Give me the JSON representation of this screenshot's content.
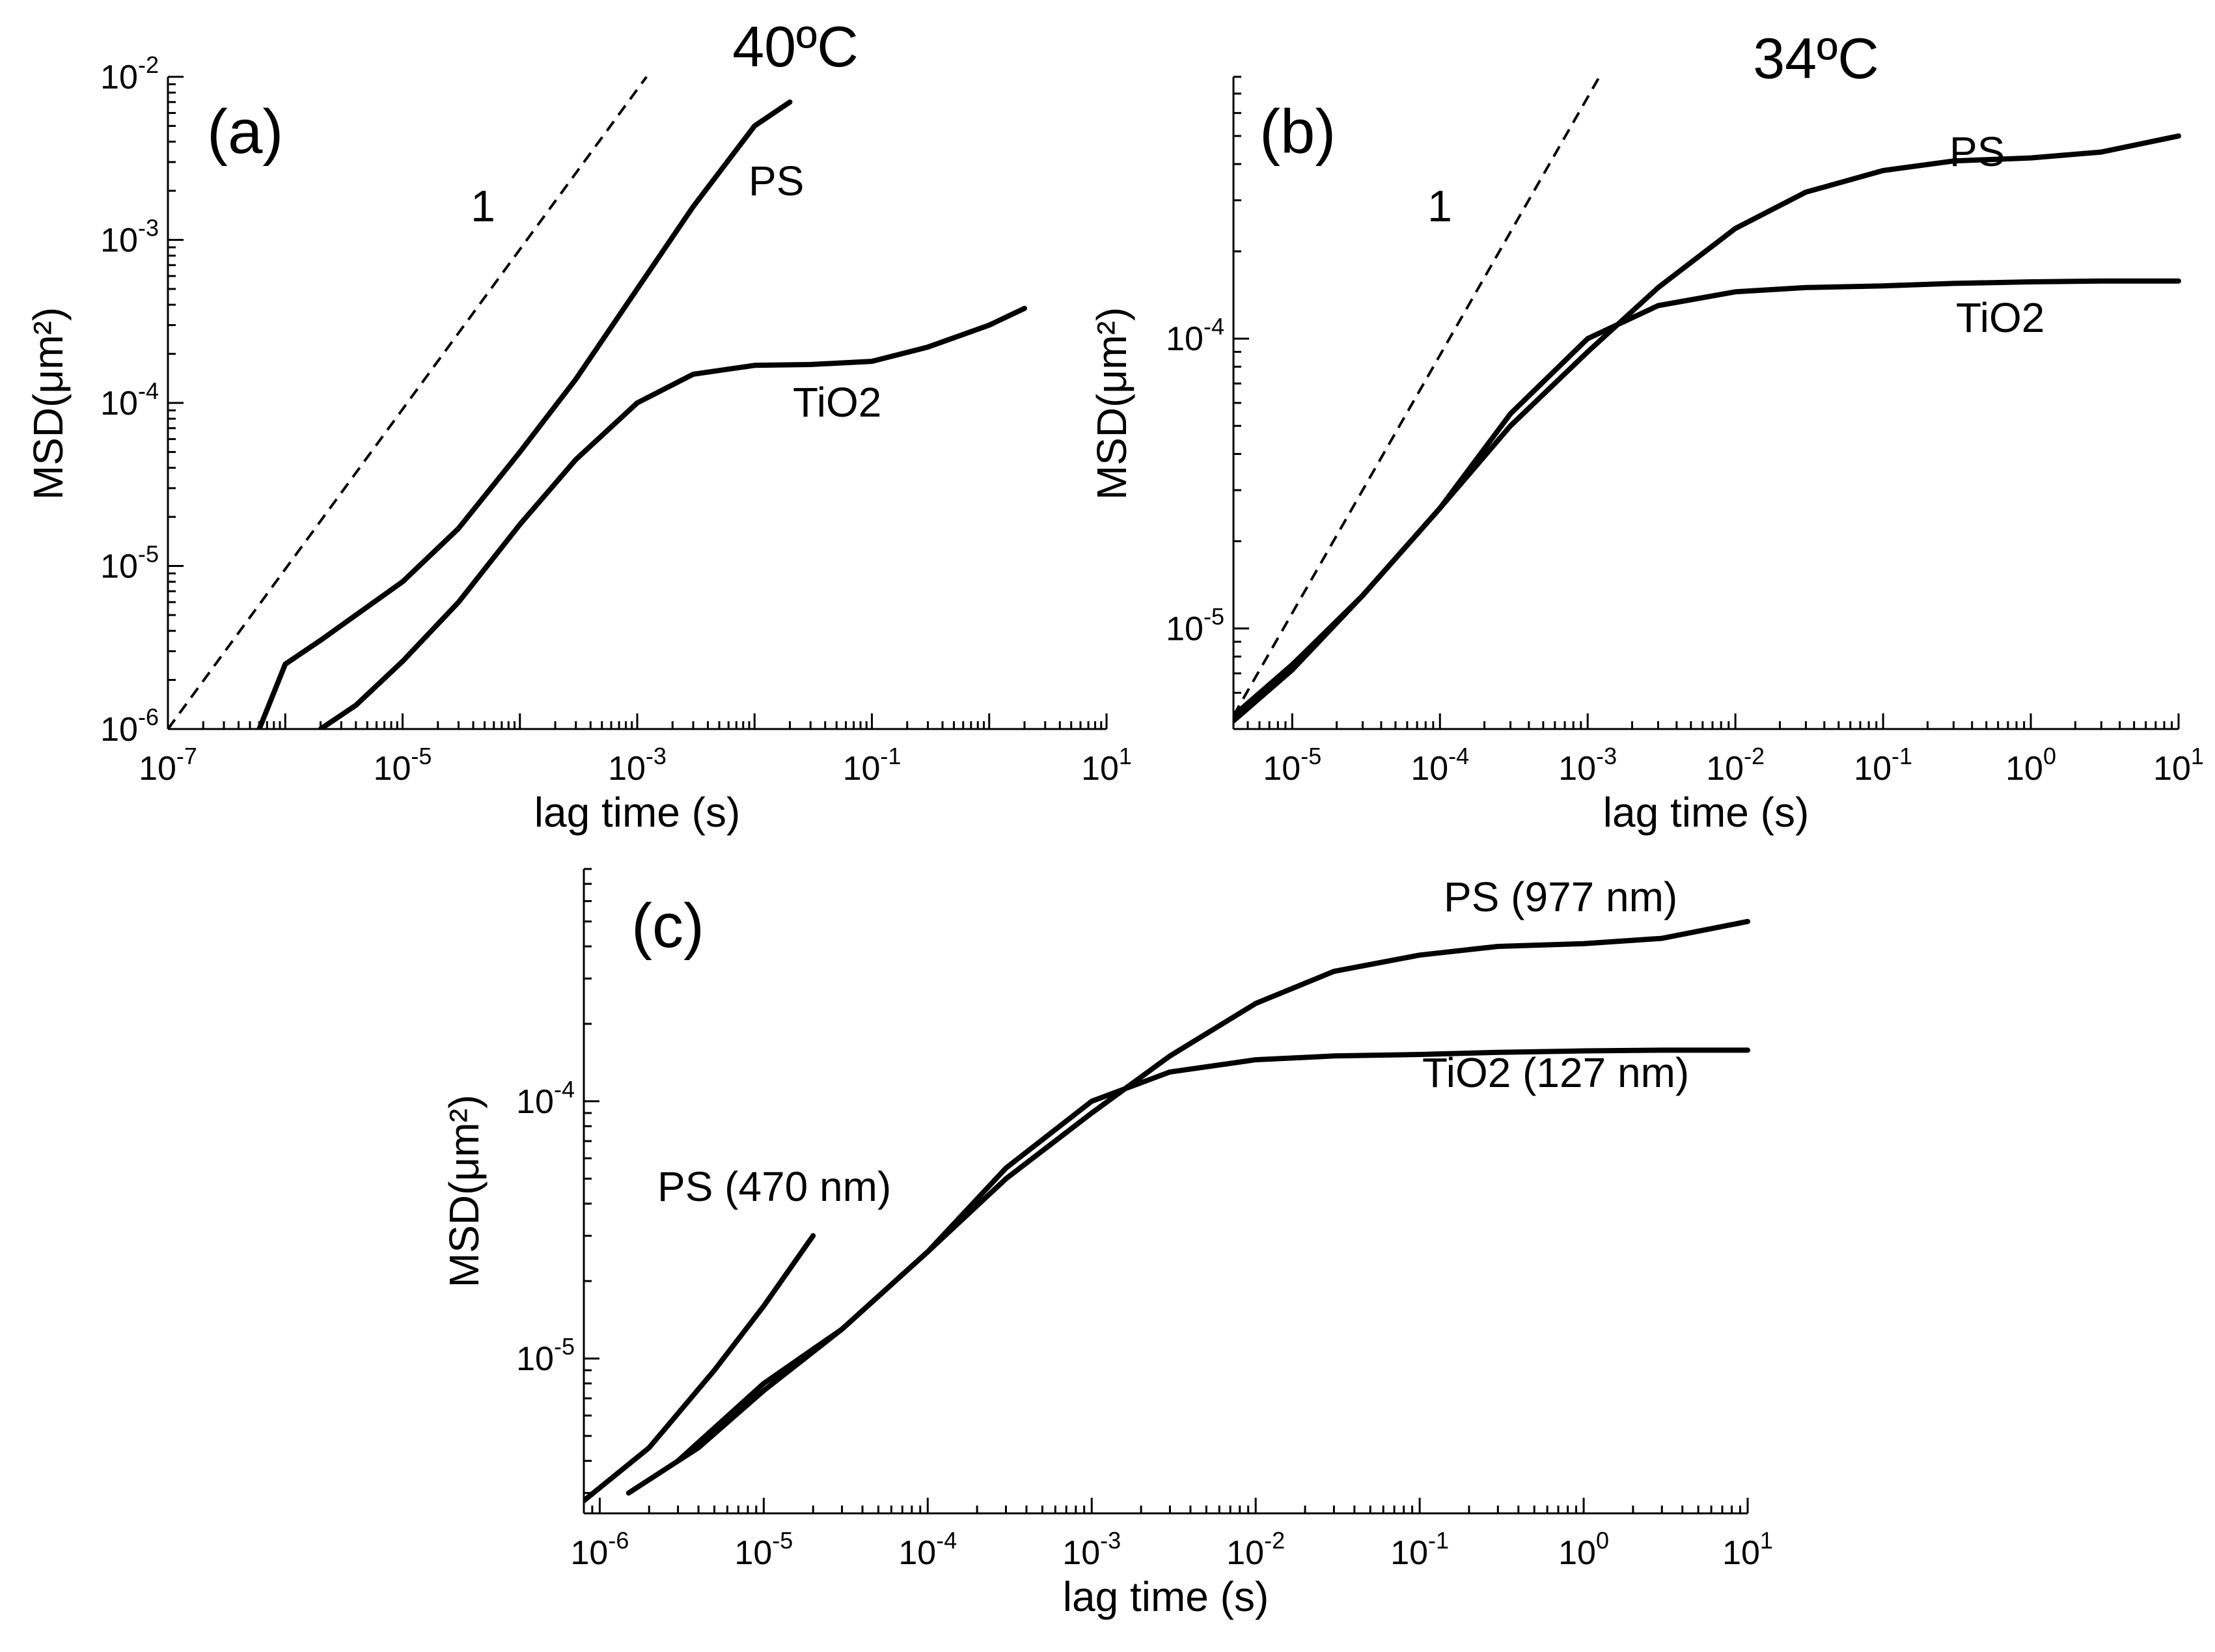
{
  "chart_data": [
    {
      "type": "line",
      "panel_label": "(a)",
      "title": "40ºC",
      "xlabel": "lag time (s)",
      "ylabel": "MSD(μm²)",
      "xscale": "log",
      "yscale": "log",
      "xlim": [
        1e-07,
        10
      ],
      "ylim": [
        1e-06,
        0.01
      ],
      "x_ticks": [
        {
          "mant": "10",
          "exp": "-7"
        },
        {
          "mant": "10",
          "exp": "-5"
        },
        {
          "mant": "10",
          "exp": "-3"
        },
        {
          "mant": "10",
          "exp": "-1"
        },
        {
          "mant": "10",
          "exp": "1"
        }
      ],
      "y_ticks": [
        {
          "mant": "10",
          "exp": "-6"
        },
        {
          "mant": "10",
          "exp": "-5"
        },
        {
          "mant": "10",
          "exp": "-4"
        },
        {
          "mant": "10",
          "exp": "-3"
        },
        {
          "mant": "10",
          "exp": "-2"
        }
      ],
      "guide": {
        "label": "1",
        "x": [
          1e-07,
          0.0012
        ],
        "y": [
          1e-06,
          0.01
        ]
      },
      "series": [
        {
          "name": "PS",
          "x": [
            6e-07,
            1e-06,
            2e-06,
            4e-06,
            1e-05,
            3e-05,
            0.0001,
            0.0003,
            0.001,
            0.003,
            0.01,
            0.02
          ],
          "y": [
            1e-06,
            2.5e-06,
            3.5e-06,
            5e-06,
            8e-06,
            1.7e-05,
            5e-05,
            0.00014,
            0.0005,
            0.0016,
            0.005,
            0.007
          ]
        },
        {
          "name": "TiO2",
          "x": [
            2e-06,
            4e-06,
            1e-05,
            3e-05,
            0.0001,
            0.0003,
            0.001,
            0.003,
            0.01,
            0.03,
            0.1,
            0.3,
            1,
            2
          ],
          "y": [
            1e-06,
            1.4e-06,
            2.6e-06,
            6e-06,
            1.8e-05,
            4.5e-05,
            0.0001,
            0.00015,
            0.00017,
            0.000172,
            0.00018,
            0.00022,
            0.0003,
            0.00038
          ]
        }
      ]
    },
    {
      "type": "line",
      "panel_label": "(b)",
      "title": "34ºC",
      "xlabel": "lag time (s)",
      "ylabel": "MSD(μm²)",
      "xscale": "log",
      "yscale": "log",
      "xlim": [
        4e-06,
        10
      ],
      "ylim": [
        4.5e-06,
        0.0008
      ],
      "x_ticks": [
        {
          "mant": "10",
          "exp": "-5"
        },
        {
          "mant": "10",
          "exp": "-4"
        },
        {
          "mant": "10",
          "exp": "-3"
        },
        {
          "mant": "10",
          "exp": "-2"
        },
        {
          "mant": "10",
          "exp": "-1"
        },
        {
          "mant": "10",
          "exp": "0"
        },
        {
          "mant": "10",
          "exp": "1"
        }
      ],
      "y_ticks": [
        {
          "mant": "10",
          "exp": "-5"
        },
        {
          "mant": "10",
          "exp": "-4"
        }
      ],
      "guide": {
        "label": "1",
        "x": [
          4e-06,
          0.0012
        ],
        "y": [
          5e-06,
          0.0008
        ]
      },
      "series": [
        {
          "name": "PS",
          "x": [
            4e-06,
            1e-05,
            3e-05,
            0.0001,
            0.0003,
            0.001,
            0.003,
            0.01,
            0.03,
            0.1,
            0.3,
            1,
            3,
            10
          ],
          "y": [
            5e-06,
            7.5e-06,
            1.3e-05,
            2.6e-05,
            5e-05,
            9e-05,
            0.00015,
            0.00024,
            0.00032,
            0.00038,
            0.00041,
            0.00042,
            0.00044,
            0.0005
          ]
        },
        {
          "name": "TiO2",
          "x": [
            4e-06,
            1e-05,
            3e-05,
            0.0001,
            0.0003,
            0.001,
            0.003,
            0.01,
            0.03,
            0.1,
            0.3,
            1,
            3,
            10
          ],
          "y": [
            4.8e-06,
            7.2e-06,
            1.3e-05,
            2.6e-05,
            5.5e-05,
            0.0001,
            0.00013,
            0.000145,
            0.00015,
            0.000152,
            0.000155,
            0.000157,
            0.000158,
            0.000158
          ]
        }
      ]
    },
    {
      "type": "line",
      "panel_label": "(c)",
      "xlabel": "lag time (s)",
      "ylabel": "MSD(μm²)",
      "xscale": "log",
      "yscale": "log",
      "xlim": [
        8e-07,
        10
      ],
      "ylim": [
        2.5e-06,
        0.0008
      ],
      "x_ticks": [
        {
          "mant": "10",
          "exp": "-6"
        },
        {
          "mant": "10",
          "exp": "-5"
        },
        {
          "mant": "10",
          "exp": "-4"
        },
        {
          "mant": "10",
          "exp": "-3"
        },
        {
          "mant": "10",
          "exp": "-2"
        },
        {
          "mant": "10",
          "exp": "-1"
        },
        {
          "mant": "10",
          "exp": "0"
        },
        {
          "mant": "10",
          "exp": "1"
        }
      ],
      "y_ticks": [
        {
          "mant": "10",
          "exp": "-5"
        },
        {
          "mant": "10",
          "exp": "-4"
        }
      ],
      "series": [
        {
          "name": "PS (977 nm)",
          "x": [
            3e-06,
            1e-05,
            3e-05,
            0.0001,
            0.0003,
            0.001,
            0.003,
            0.01,
            0.03,
            0.1,
            0.3,
            1,
            3,
            10
          ],
          "y": [
            4e-06,
            8e-06,
            1.3e-05,
            2.6e-05,
            5e-05,
            9e-05,
            0.00015,
            0.00024,
            0.00032,
            0.00037,
            0.0004,
            0.00041,
            0.00043,
            0.0005
          ]
        },
        {
          "name": "TiO2 (127 nm)",
          "x": [
            1.5e-06,
            4e-06,
            1e-05,
            3e-05,
            0.0001,
            0.0003,
            0.001,
            0.003,
            0.01,
            0.03,
            0.1,
            0.3,
            1,
            3,
            10
          ],
          "y": [
            3e-06,
            4.5e-06,
            7.5e-06,
            1.3e-05,
            2.6e-05,
            5.5e-05,
            0.0001,
            0.00013,
            0.000145,
            0.00015,
            0.000152,
            0.000155,
            0.000157,
            0.000158,
            0.000158
          ]
        },
        {
          "name": "PS (470 nm)",
          "x": [
            8e-07,
            2e-06,
            5e-06,
            1e-05,
            2e-05
          ],
          "y": [
            2.8e-06,
            4.5e-06,
            9e-06,
            1.6e-05,
            3e-05
          ]
        }
      ]
    }
  ]
}
